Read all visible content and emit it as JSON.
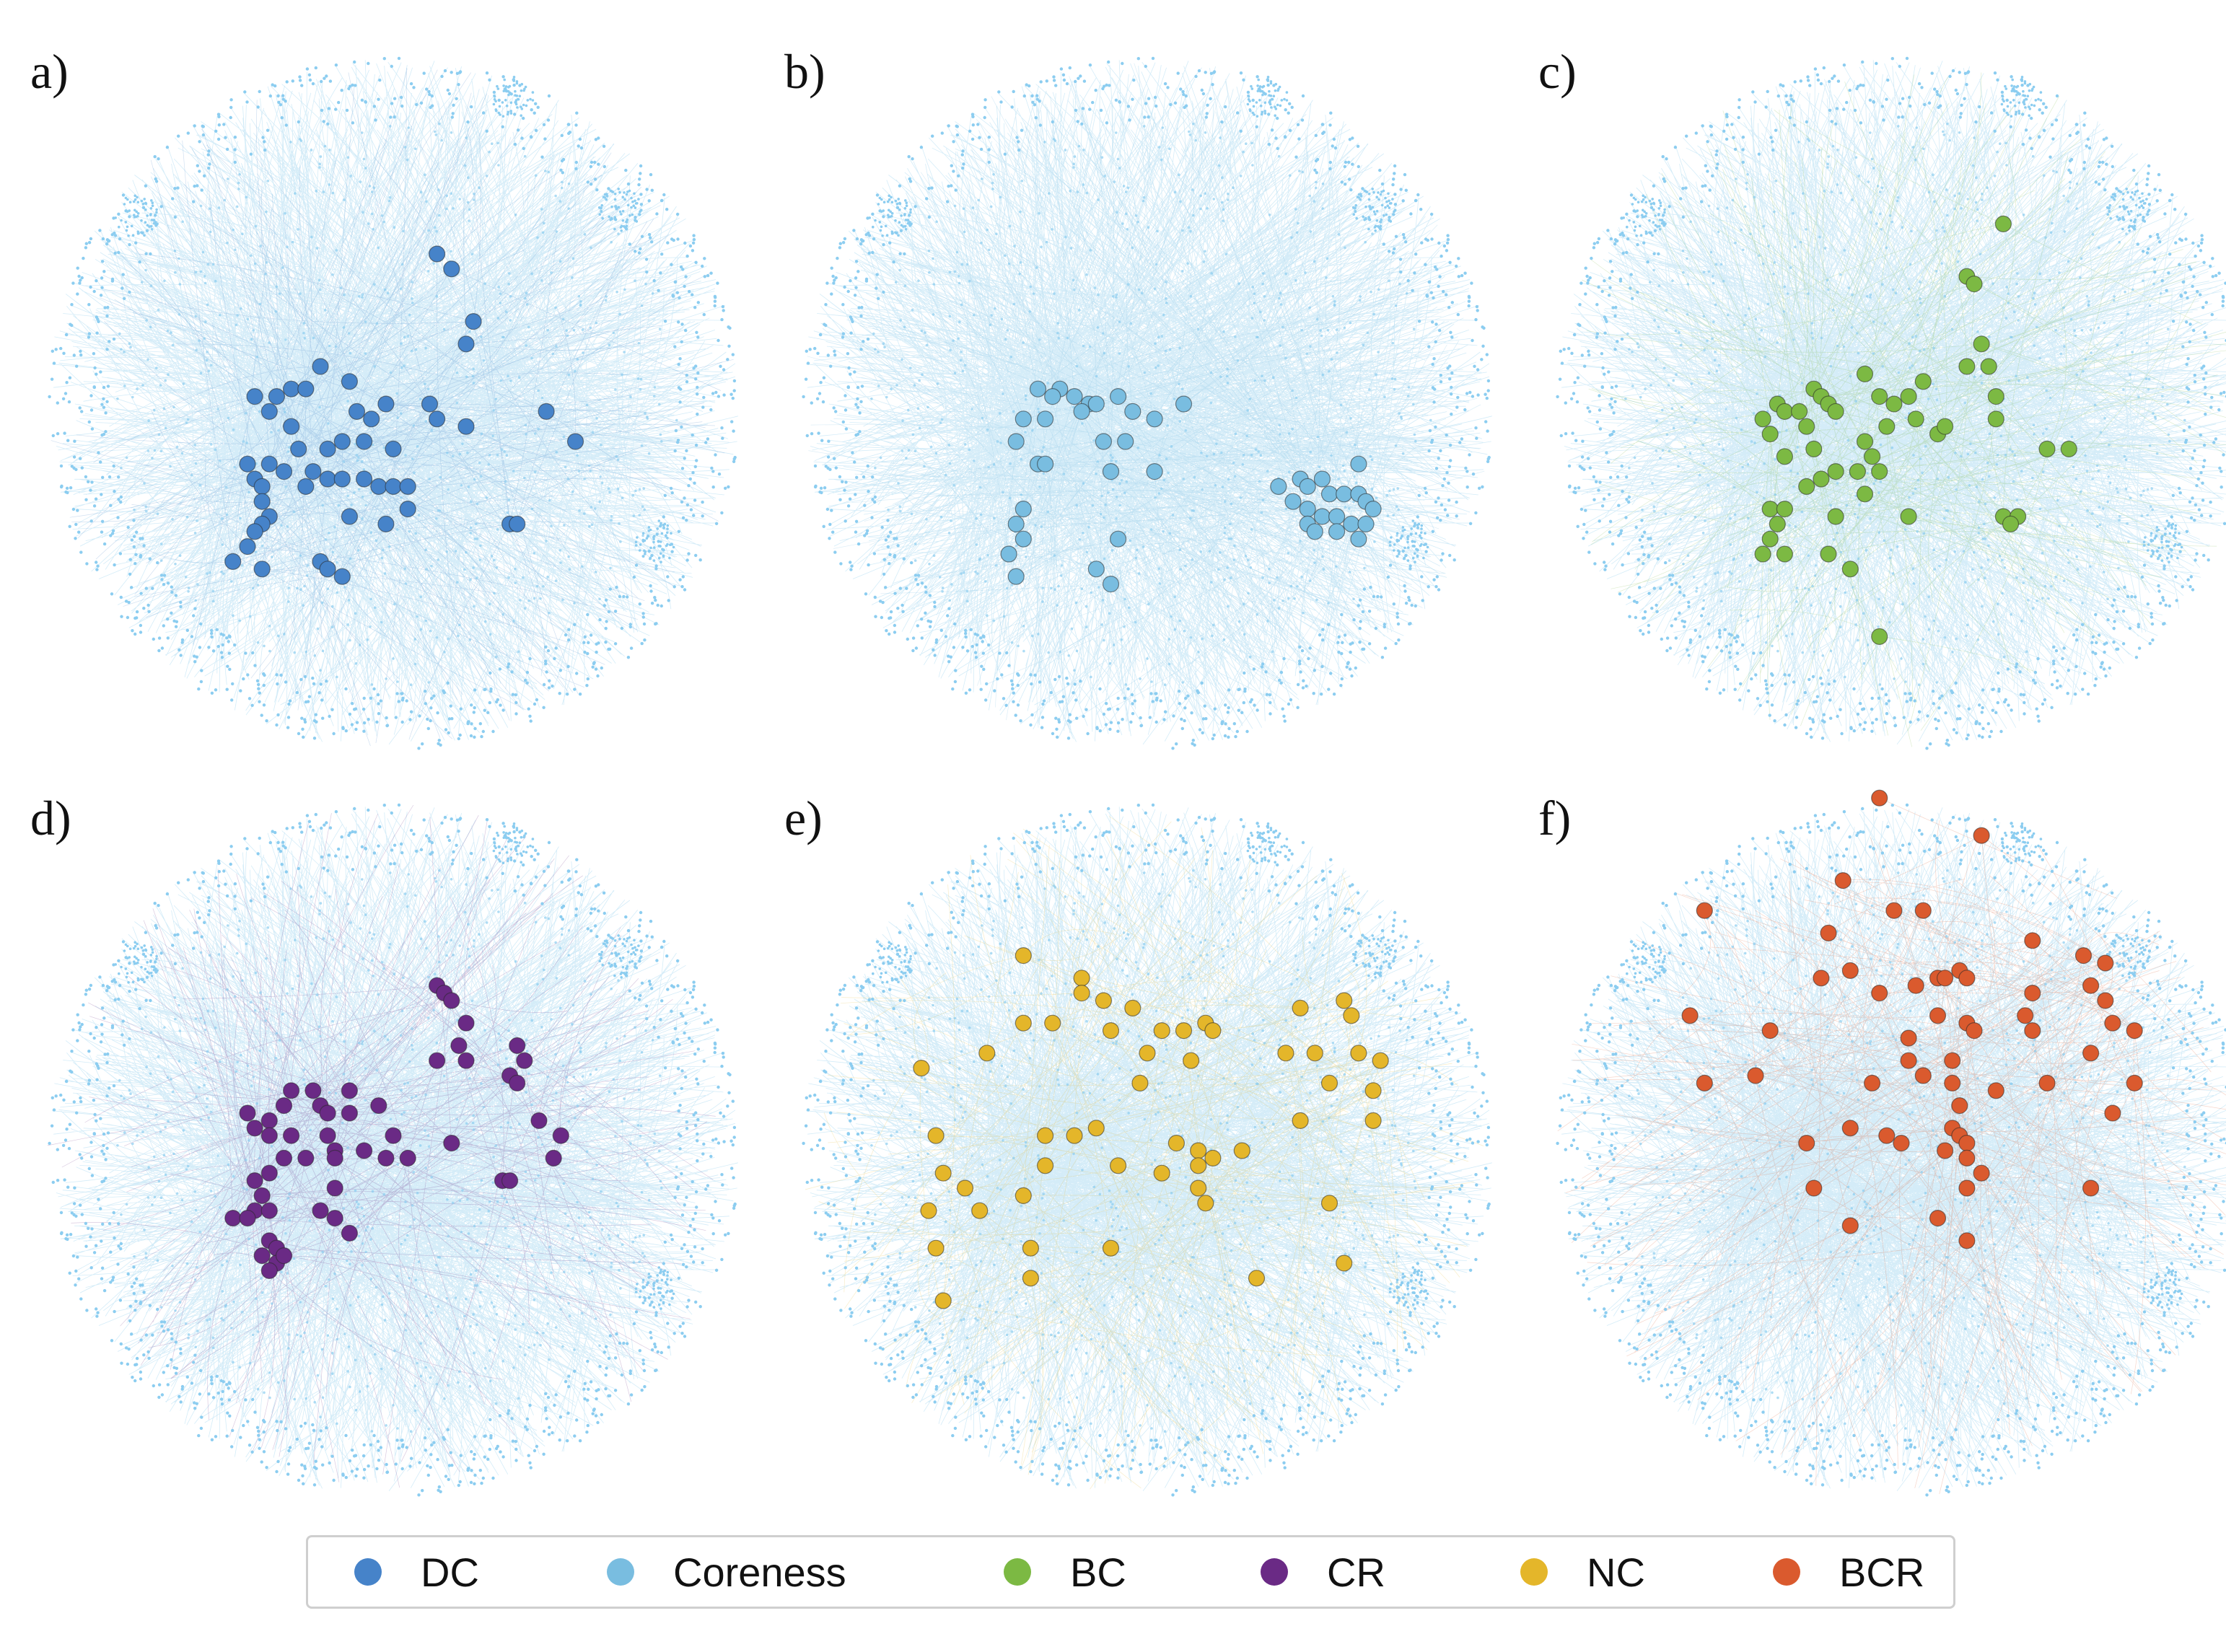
{
  "panels": [
    {
      "label": "a)",
      "method": "DC",
      "color": "#4683c9",
      "nodes": [
        [
          0.56,
          0.3
        ],
        [
          0.58,
          0.32
        ],
        [
          0.61,
          0.39
        ],
        [
          0.6,
          0.42
        ],
        [
          0.4,
          0.45
        ],
        [
          0.44,
          0.47
        ],
        [
          0.36,
          0.48
        ],
        [
          0.38,
          0.48
        ],
        [
          0.34,
          0.49
        ],
        [
          0.31,
          0.49
        ],
        [
          0.49,
          0.5
        ],
        [
          0.45,
          0.51
        ],
        [
          0.47,
          0.52
        ],
        [
          0.55,
          0.5
        ],
        [
          0.56,
          0.52
        ],
        [
          0.33,
          0.51
        ],
        [
          0.36,
          0.53
        ],
        [
          0.46,
          0.55
        ],
        [
          0.43,
          0.55
        ],
        [
          0.5,
          0.56
        ],
        [
          0.41,
          0.56
        ],
        [
          0.6,
          0.53
        ],
        [
          0.71,
          0.51
        ],
        [
          0.75,
          0.55
        ],
        [
          0.37,
          0.56
        ],
        [
          0.33,
          0.58
        ],
        [
          0.3,
          0.58
        ],
        [
          0.31,
          0.6
        ],
        [
          0.35,
          0.59
        ],
        [
          0.39,
          0.59
        ],
        [
          0.41,
          0.6
        ],
        [
          0.43,
          0.6
        ],
        [
          0.46,
          0.6
        ],
        [
          0.48,
          0.61
        ],
        [
          0.5,
          0.61
        ],
        [
          0.52,
          0.61
        ],
        [
          0.38,
          0.61
        ],
        [
          0.32,
          0.61
        ],
        [
          0.32,
          0.63
        ],
        [
          0.33,
          0.65
        ],
        [
          0.44,
          0.65
        ],
        [
          0.49,
          0.66
        ],
        [
          0.52,
          0.64
        ],
        [
          0.66,
          0.66
        ],
        [
          0.67,
          0.66
        ],
        [
          0.32,
          0.66
        ],
        [
          0.31,
          0.67
        ],
        [
          0.3,
          0.69
        ],
        [
          0.28,
          0.71
        ],
        [
          0.32,
          0.72
        ],
        [
          0.4,
          0.71
        ],
        [
          0.41,
          0.72
        ],
        [
          0.43,
          0.73
        ]
      ]
    },
    {
      "label": "b)",
      "method": "Coreness",
      "color": "#79bde0",
      "nodes": [
        [
          0.35,
          0.48
        ],
        [
          0.38,
          0.48
        ],
        [
          0.37,
          0.49
        ],
        [
          0.4,
          0.49
        ],
        [
          0.42,
          0.5
        ],
        [
          0.41,
          0.51
        ],
        [
          0.43,
          0.5
        ],
        [
          0.46,
          0.49
        ],
        [
          0.33,
          0.52
        ],
        [
          0.36,
          0.52
        ],
        [
          0.48,
          0.51
        ],
        [
          0.51,
          0.52
        ],
        [
          0.55,
          0.5
        ],
        [
          0.32,
          0.55
        ],
        [
          0.44,
          0.55
        ],
        [
          0.47,
          0.55
        ],
        [
          0.35,
          0.58
        ],
        [
          0.45,
          0.59
        ],
        [
          0.36,
          0.58
        ],
        [
          0.51,
          0.59
        ],
        [
          0.68,
          0.61
        ],
        [
          0.71,
          0.6
        ],
        [
          0.72,
          0.61
        ],
        [
          0.74,
          0.6
        ],
        [
          0.79,
          0.58
        ],
        [
          0.7,
          0.63
        ],
        [
          0.72,
          0.64
        ],
        [
          0.75,
          0.62
        ],
        [
          0.77,
          0.62
        ],
        [
          0.79,
          0.62
        ],
        [
          0.8,
          0.63
        ],
        [
          0.81,
          0.64
        ],
        [
          0.72,
          0.66
        ],
        [
          0.74,
          0.65
        ],
        [
          0.76,
          0.65
        ],
        [
          0.78,
          0.66
        ],
        [
          0.8,
          0.66
        ],
        [
          0.73,
          0.67
        ],
        [
          0.76,
          0.67
        ],
        [
          0.79,
          0.68
        ],
        [
          0.33,
          0.64
        ],
        [
          0.32,
          0.66
        ],
        [
          0.33,
          0.68
        ],
        [
          0.46,
          0.68
        ],
        [
          0.31,
          0.7
        ],
        [
          0.43,
          0.72
        ],
        [
          0.32,
          0.73
        ],
        [
          0.45,
          0.74
        ]
      ]
    },
    {
      "label": "c)",
      "method": "BC",
      "color": "#7cb943",
      "nodes": [
        [
          0.64,
          0.26
        ],
        [
          0.59,
          0.33
        ],
        [
          0.6,
          0.34
        ],
        [
          0.61,
          0.42
        ],
        [
          0.59,
          0.45
        ],
        [
          0.62,
          0.45
        ],
        [
          0.45,
          0.46
        ],
        [
          0.38,
          0.48
        ],
        [
          0.53,
          0.47
        ],
        [
          0.51,
          0.49
        ],
        [
          0.33,
          0.5
        ],
        [
          0.39,
          0.49
        ],
        [
          0.4,
          0.5
        ],
        [
          0.41,
          0.51
        ],
        [
          0.47,
          0.49
        ],
        [
          0.49,
          0.5
        ],
        [
          0.52,
          0.52
        ],
        [
          0.63,
          0.49
        ],
        [
          0.34,
          0.51
        ],
        [
          0.36,
          0.51
        ],
        [
          0.31,
          0.52
        ],
        [
          0.37,
          0.53
        ],
        [
          0.48,
          0.53
        ],
        [
          0.55,
          0.54
        ],
        [
          0.45,
          0.55
        ],
        [
          0.56,
          0.53
        ],
        [
          0.63,
          0.52
        ],
        [
          0.32,
          0.54
        ],
        [
          0.34,
          0.57
        ],
        [
          0.38,
          0.56
        ],
        [
          0.46,
          0.57
        ],
        [
          0.47,
          0.59
        ],
        [
          0.41,
          0.59
        ],
        [
          0.44,
          0.59
        ],
        [
          0.7,
          0.56
        ],
        [
          0.73,
          0.56
        ],
        [
          0.39,
          0.6
        ],
        [
          0.37,
          0.61
        ],
        [
          0.45,
          0.62
        ],
        [
          0.32,
          0.64
        ],
        [
          0.34,
          0.64
        ],
        [
          0.33,
          0.66
        ],
        [
          0.41,
          0.65
        ],
        [
          0.51,
          0.65
        ],
        [
          0.64,
          0.65
        ],
        [
          0.66,
          0.65
        ],
        [
          0.65,
          0.66
        ],
        [
          0.32,
          0.68
        ],
        [
          0.31,
          0.7
        ],
        [
          0.34,
          0.7
        ],
        [
          0.4,
          0.7
        ],
        [
          0.43,
          0.72
        ],
        [
          0.47,
          0.81
        ]
      ]
    },
    {
      "label": "d)",
      "method": "CR",
      "color": "#6a2a85",
      "nodes": [
        [
          0.56,
          0.28
        ],
        [
          0.57,
          0.29
        ],
        [
          0.58,
          0.3
        ],
        [
          0.6,
          0.33
        ],
        [
          0.59,
          0.36
        ],
        [
          0.67,
          0.36
        ],
        [
          0.68,
          0.38
        ],
        [
          0.6,
          0.38
        ],
        [
          0.56,
          0.38
        ],
        [
          0.66,
          0.4
        ],
        [
          0.67,
          0.41
        ],
        [
          0.36,
          0.42
        ],
        [
          0.39,
          0.42
        ],
        [
          0.44,
          0.42
        ],
        [
          0.35,
          0.44
        ],
        [
          0.4,
          0.44
        ],
        [
          0.41,
          0.45
        ],
        [
          0.44,
          0.45
        ],
        [
          0.48,
          0.44
        ],
        [
          0.3,
          0.45
        ],
        [
          0.33,
          0.46
        ],
        [
          0.31,
          0.47
        ],
        [
          0.33,
          0.48
        ],
        [
          0.36,
          0.48
        ],
        [
          0.41,
          0.48
        ],
        [
          0.5,
          0.48
        ],
        [
          0.7,
          0.46
        ],
        [
          0.73,
          0.48
        ],
        [
          0.42,
          0.5
        ],
        [
          0.46,
          0.5
        ],
        [
          0.58,
          0.49
        ],
        [
          0.35,
          0.51
        ],
        [
          0.38,
          0.51
        ],
        [
          0.42,
          0.51
        ],
        [
          0.49,
          0.51
        ],
        [
          0.52,
          0.51
        ],
        [
          0.72,
          0.51
        ],
        [
          0.33,
          0.53
        ],
        [
          0.31,
          0.54
        ],
        [
          0.65,
          0.54
        ],
        [
          0.66,
          0.54
        ],
        [
          0.42,
          0.55
        ],
        [
          0.32,
          0.56
        ],
        [
          0.31,
          0.58
        ],
        [
          0.33,
          0.58
        ],
        [
          0.28,
          0.59
        ],
        [
          0.3,
          0.59
        ],
        [
          0.4,
          0.58
        ],
        [
          0.42,
          0.59
        ],
        [
          0.44,
          0.61
        ],
        [
          0.33,
          0.62
        ],
        [
          0.34,
          0.63
        ],
        [
          0.32,
          0.64
        ],
        [
          0.34,
          0.65
        ],
        [
          0.33,
          0.66
        ],
        [
          0.35,
          0.64
        ]
      ]
    },
    {
      "label": "e)",
      "method": "NC",
      "color": "#e4b62a",
      "nodes": [
        [
          0.33,
          0.24
        ],
        [
          0.41,
          0.27
        ],
        [
          0.41,
          0.29
        ],
        [
          0.44,
          0.3
        ],
        [
          0.48,
          0.31
        ],
        [
          0.33,
          0.33
        ],
        [
          0.37,
          0.33
        ],
        [
          0.45,
          0.34
        ],
        [
          0.52,
          0.34
        ],
        [
          0.55,
          0.34
        ],
        [
          0.58,
          0.33
        ],
        [
          0.59,
          0.34
        ],
        [
          0.71,
          0.31
        ],
        [
          0.77,
          0.3
        ],
        [
          0.78,
          0.32
        ],
        [
          0.28,
          0.37
        ],
        [
          0.5,
          0.37
        ],
        [
          0.56,
          0.38
        ],
        [
          0.69,
          0.37
        ],
        [
          0.73,
          0.37
        ],
        [
          0.79,
          0.37
        ],
        [
          0.82,
          0.38
        ],
        [
          0.19,
          0.39
        ],
        [
          0.49,
          0.41
        ],
        [
          0.75,
          0.41
        ],
        [
          0.81,
          0.42
        ],
        [
          0.21,
          0.48
        ],
        [
          0.36,
          0.48
        ],
        [
          0.4,
          0.48
        ],
        [
          0.43,
          0.47
        ],
        [
          0.54,
          0.49
        ],
        [
          0.57,
          0.5
        ],
        [
          0.71,
          0.46
        ],
        [
          0.81,
          0.46
        ],
        [
          0.22,
          0.53
        ],
        [
          0.36,
          0.52
        ],
        [
          0.46,
          0.52
        ],
        [
          0.52,
          0.53
        ],
        [
          0.57,
          0.52
        ],
        [
          0.59,
          0.51
        ],
        [
          0.63,
          0.5
        ],
        [
          0.25,
          0.55
        ],
        [
          0.33,
          0.56
        ],
        [
          0.57,
          0.55
        ],
        [
          0.58,
          0.57
        ],
        [
          0.2,
          0.58
        ],
        [
          0.27,
          0.58
        ],
        [
          0.75,
          0.57
        ],
        [
          0.21,
          0.63
        ],
        [
          0.34,
          0.63
        ],
        [
          0.45,
          0.63
        ],
        [
          0.34,
          0.67
        ],
        [
          0.65,
          0.67
        ],
        [
          0.77,
          0.65
        ],
        [
          0.22,
          0.7
        ]
      ]
    },
    {
      "label": "f)",
      "method": "BCR",
      "color": "#da5a2e",
      "nodes": [
        [
          0.47,
          0.03
        ],
        [
          0.61,
          0.08
        ],
        [
          0.42,
          0.14
        ],
        [
          0.49,
          0.18
        ],
        [
          0.53,
          0.18
        ],
        [
          0.23,
          0.18
        ],
        [
          0.4,
          0.21
        ],
        [
          0.68,
          0.22
        ],
        [
          0.75,
          0.24
        ],
        [
          0.78,
          0.25
        ],
        [
          0.39,
          0.27
        ],
        [
          0.43,
          0.26
        ],
        [
          0.55,
          0.27
        ],
        [
          0.56,
          0.27
        ],
        [
          0.58,
          0.26
        ],
        [
          0.59,
          0.27
        ],
        [
          0.52,
          0.28
        ],
        [
          0.47,
          0.29
        ],
        [
          0.68,
          0.29
        ],
        [
          0.76,
          0.28
        ],
        [
          0.78,
          0.3
        ],
        [
          0.21,
          0.32
        ],
        [
          0.32,
          0.34
        ],
        [
          0.55,
          0.32
        ],
        [
          0.59,
          0.33
        ],
        [
          0.67,
          0.32
        ],
        [
          0.79,
          0.33
        ],
        [
          0.82,
          0.34
        ],
        [
          0.51,
          0.35
        ],
        [
          0.6,
          0.34
        ],
        [
          0.68,
          0.34
        ],
        [
          0.51,
          0.38
        ],
        [
          0.57,
          0.38
        ],
        [
          0.76,
          0.37
        ],
        [
          0.3,
          0.4
        ],
        [
          0.46,
          0.41
        ],
        [
          0.53,
          0.4
        ],
        [
          0.57,
          0.41
        ],
        [
          0.63,
          0.42
        ],
        [
          0.7,
          0.41
        ],
        [
          0.82,
          0.41
        ],
        [
          0.23,
          0.41
        ],
        [
          0.58,
          0.44
        ],
        [
          0.79,
          0.45
        ],
        [
          0.43,
          0.47
        ],
        [
          0.57,
          0.47
        ],
        [
          0.58,
          0.48
        ],
        [
          0.59,
          0.49
        ],
        [
          0.48,
          0.48
        ],
        [
          0.5,
          0.49
        ],
        [
          0.56,
          0.5
        ],
        [
          0.59,
          0.51
        ],
        [
          0.37,
          0.49
        ],
        [
          0.61,
          0.53
        ],
        [
          0.59,
          0.55
        ],
        [
          0.76,
          0.55
        ],
        [
          0.38,
          0.55
        ],
        [
          0.43,
          0.6
        ],
        [
          0.59,
          0.62
        ],
        [
          0.55,
          0.59
        ]
      ]
    }
  ],
  "legend": [
    {
      "label": "DC",
      "color": "#4683c9"
    },
    {
      "label": "Coreness",
      "color": "#79bde0"
    },
    {
      "label": "BC",
      "color": "#7cb943"
    },
    {
      "label": "CR",
      "color": "#6a2a85"
    },
    {
      "label": "NC",
      "color": "#e4b62a"
    },
    {
      "label": "BCR",
      "color": "#da5a2e"
    }
  ],
  "network": {
    "edge_color": "#9fd4f0",
    "node_color": "#8ccdf0"
  }
}
